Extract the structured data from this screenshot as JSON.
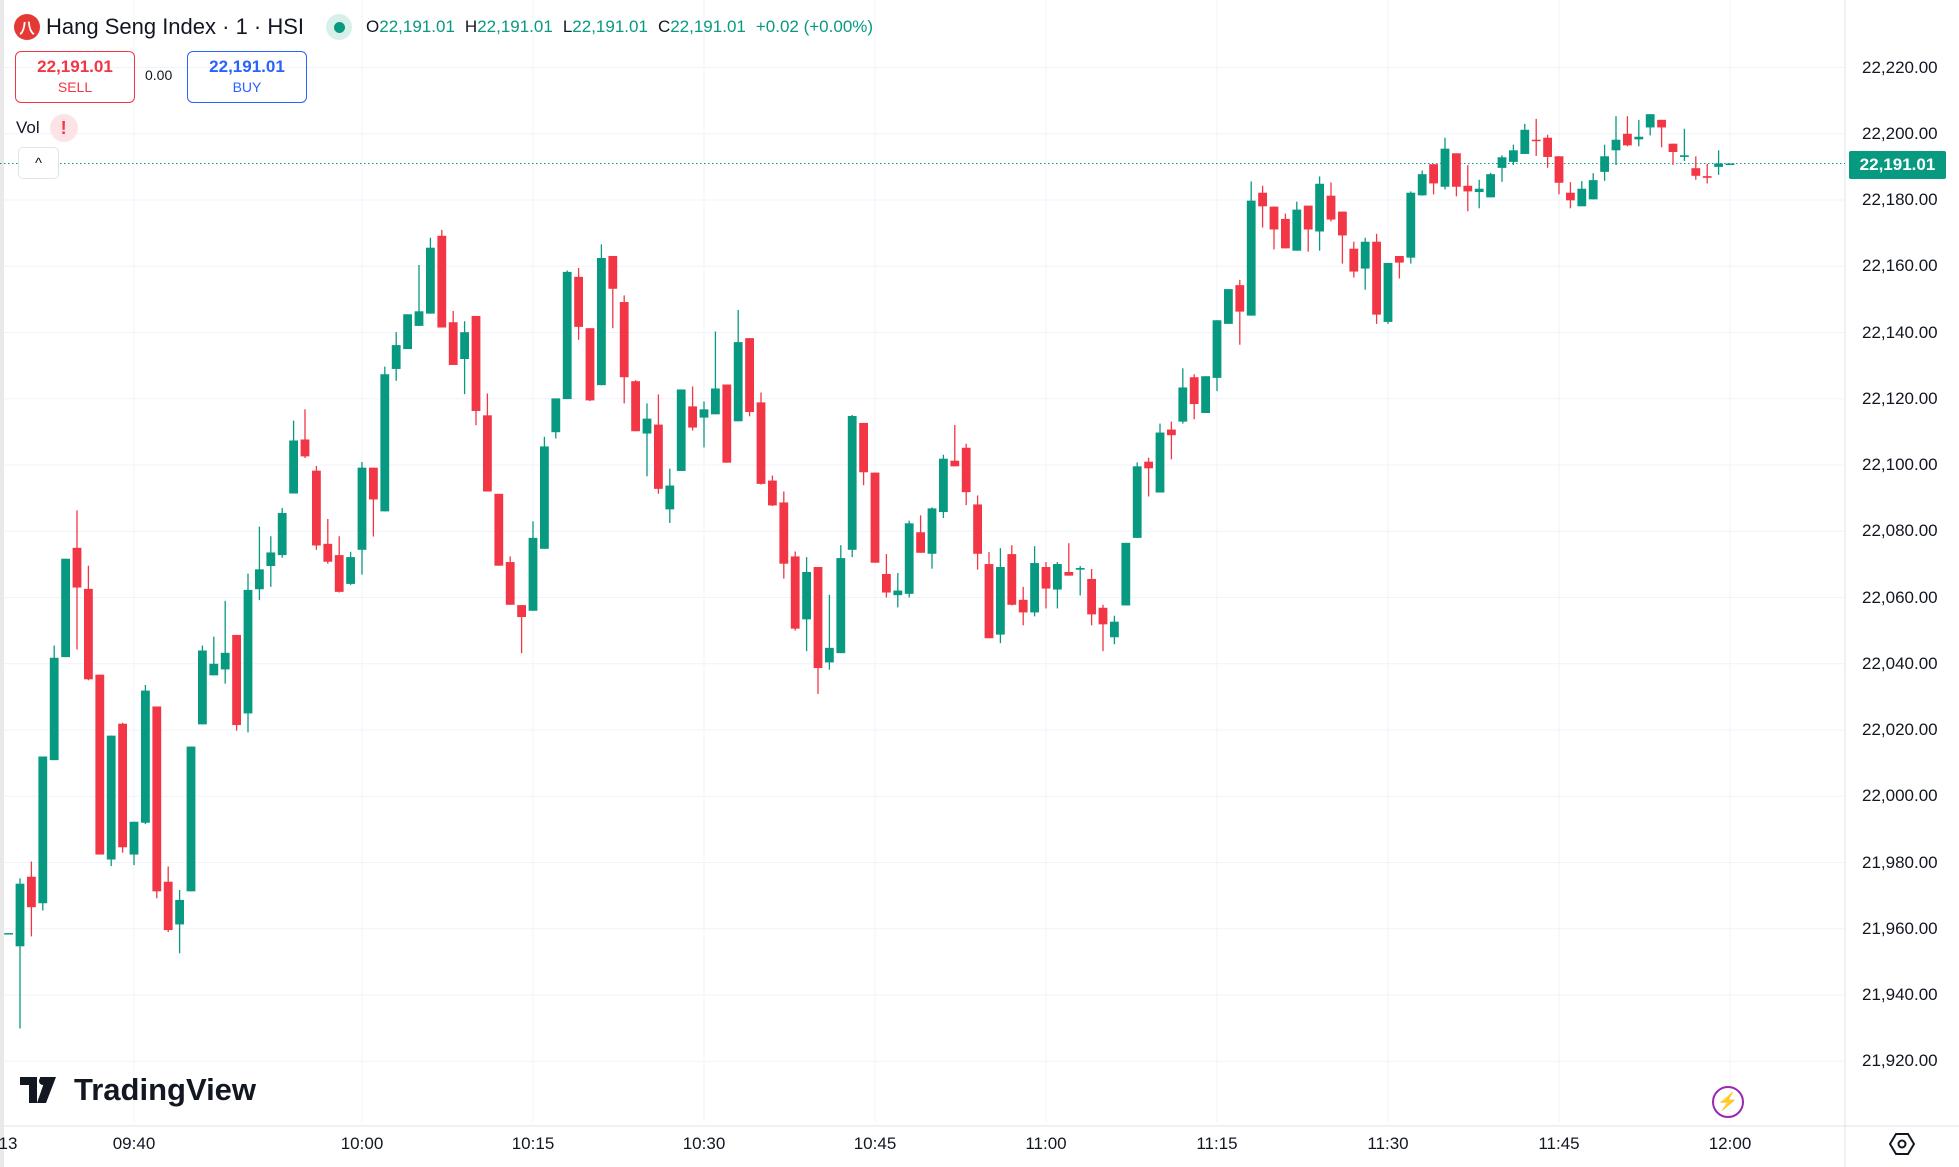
{
  "header": {
    "symbol_title": "Hang Seng Index · 1 · HSI",
    "logo_text": "八",
    "ohlc": [
      {
        "key": "O",
        "value": "22,191.01"
      },
      {
        "key": "H",
        "value": "22,191.01"
      },
      {
        "key": "L",
        "value": "22,191.01"
      },
      {
        "key": "C",
        "value": "22,191.01"
      }
    ],
    "change": "+0.02 (+0.00%)"
  },
  "trade": {
    "sell_price": "22,191.01",
    "sell_label": "SELL",
    "spread": "0.00",
    "buy_price": "22,191.01",
    "buy_label": "BUY"
  },
  "indicators": {
    "vol_label": "Vol",
    "warning": "!",
    "collapse": "^"
  },
  "price_axis": {
    "labels": [
      "22,220.00",
      "22,200.00",
      "22,180.00",
      "22,160.00",
      "22,140.00",
      "22,120.00",
      "22,100.00",
      "22,080.00",
      "22,060.00",
      "22,040.00",
      "22,020.00",
      "22,000.00",
      "21,980.00",
      "21,960.00",
      "21,940.00",
      "21,920.00"
    ],
    "current_price": "22,191.01"
  },
  "time_axis": {
    "labels": [
      "13",
      "09:40",
      "10:00",
      "10:15",
      "10:30",
      "10:45",
      "11:00",
      "11:15",
      "11:30",
      "11:45",
      "12:00"
    ]
  },
  "branding": {
    "name": "TradingView"
  },
  "colors": {
    "up": "#089981",
    "down": "#F23645",
    "grid": "#f0f3fa",
    "bolt": "#9c27b0"
  },
  "chart_data": {
    "type": "candlestick",
    "title": "Hang Seng Index · 1 · HSI",
    "interval": "1 minute",
    "ylim": [
      21910,
      22230
    ],
    "last_price": 22191.01,
    "fields": [
      "time",
      "open",
      "high",
      "low",
      "close"
    ],
    "candles": [
      [
        "09:29",
        21958.7,
        21958.7,
        21958.7,
        21958.7
      ],
      [
        "09:30",
        21954.7,
        21975.2,
        21929.9,
        21973.6
      ],
      [
        "09:31",
        21975.7,
        21980.3,
        21957.7,
        21966.5
      ],
      [
        "09:32",
        21967.7,
        22012.0,
        21965.5,
        22012.0
      ],
      [
        "09:33",
        22010.9,
        22045.5,
        22010.9,
        22041.8
      ],
      [
        "09:34",
        22042.0,
        22071.7,
        22042.0,
        22071.7
      ],
      [
        "09:35",
        22075.0,
        22086.3,
        22044.3,
        22063.0
      ],
      [
        "09:36",
        22062.6,
        22069.6,
        22035.0,
        22035.3
      ],
      [
        "09:37",
        22036.7,
        22036.7,
        21982.4,
        21982.4
      ],
      [
        "09:38",
        21980.9,
        22018.3,
        21978.9,
        22018.3
      ],
      [
        "09:39",
        22021.9,
        22022.2,
        21983.0,
        21984.6
      ],
      [
        "09:40",
        21982.4,
        21992.3,
        21979.2,
        21992.3
      ],
      [
        "09:41",
        21992.0,
        22033.6,
        21991.6,
        22031.9
      ],
      [
        "09:42",
        22027.1,
        22027.1,
        21969.2,
        21971.3
      ],
      [
        "09:43",
        21974.2,
        21978.8,
        21959.0,
        21959.6
      ],
      [
        "09:44",
        21961.3,
        21971.7,
        21952.6,
        21968.7
      ],
      [
        "09:45",
        21971.3,
        22015.0,
        21971.3,
        22015.0
      ],
      [
        "09:46",
        22021.7,
        22045.5,
        22021.7,
        22044.0
      ],
      [
        "09:47",
        22036.5,
        22048.2,
        22036.5,
        22040.0
      ],
      [
        "09:48",
        22038.3,
        22059.0,
        22034.0,
        22043.3
      ],
      [
        "09:49",
        22048.7,
        22048.7,
        22019.8,
        22021.5
      ],
      [
        "09:50",
        22025.0,
        22067.2,
        22019.3,
        22062.3
      ],
      [
        "09:51",
        22062.5,
        22081.4,
        22059.2,
        22068.5
      ],
      [
        "09:52",
        22069.5,
        22078.5,
        22063.2,
        22073.6
      ],
      [
        "09:53",
        22072.8,
        22087.0,
        22072.0,
        22085.5
      ],
      [
        "09:54",
        22091.4,
        22113.4,
        22091.4,
        22107.4
      ],
      [
        "09:55",
        22107.7,
        22116.8,
        22102.1,
        22102.6
      ],
      [
        "09:56",
        22098.3,
        22099.7,
        22074.4,
        22075.7
      ],
      [
        "09:57",
        22076.2,
        22083.7,
        22070.2,
        22070.8
      ],
      [
        "09:58",
        22072.8,
        22078.5,
        22061.5,
        22061.7
      ],
      [
        "09:59",
        22064.1,
        22073.8,
        22063.8,
        22072.2
      ],
      [
        "10:00",
        22074.4,
        22100.9,
        22066.9,
        22099.2
      ],
      [
        "10:01",
        22099.2,
        22099.2,
        22078.4,
        22089.6
      ],
      [
        "10:02",
        22086.0,
        22129.7,
        22086.0,
        22127.4
      ],
      [
        "10:03",
        22129.0,
        22140.1,
        22125.4,
        22136.2
      ],
      [
        "10:04",
        22135.0,
        22145.5,
        22135.0,
        22145.5
      ],
      [
        "10:05",
        22142.0,
        22160.4,
        22142.0,
        22146.4
      ],
      [
        "10:06",
        22145.7,
        22168.6,
        22145.7,
        22165.6
      ],
      [
        "10:07",
        22169.2,
        22171.0,
        22141.5,
        22141.5
      ],
      [
        "10:08",
        22143.1,
        22146.5,
        22130.2,
        22130.2
      ],
      [
        "10:09",
        22132.0,
        22143.4,
        22121.4,
        22140.1
      ],
      [
        "10:10",
        22145.0,
        22145.0,
        22112.0,
        22116.3
      ],
      [
        "10:11",
        22115.0,
        22121.6,
        22092.0,
        22092.0
      ],
      [
        "10:12",
        22091.3,
        22091.3,
        22069.6,
        22069.6
      ],
      [
        "10:13",
        22070.7,
        22072.4,
        22057.8,
        22057.8
      ],
      [
        "10:14",
        22057.7,
        22057.7,
        22043.2,
        22054.1
      ],
      [
        "10:15",
        22056.0,
        22083.0,
        22056.0,
        22078.0
      ],
      [
        "10:16",
        22074.7,
        22108.5,
        22074.7,
        22105.6
      ],
      [
        "10:17",
        22109.9,
        22120.1,
        22108.0,
        22120.1
      ],
      [
        "10:18",
        22119.9,
        22158.7,
        22119.9,
        22158.3
      ],
      [
        "10:19",
        22156.8,
        22159.5,
        22137.8,
        22141.7
      ],
      [
        "10:20",
        22141.3,
        22141.3,
        22119.3,
        22119.5
      ],
      [
        "10:21",
        22124.1,
        22166.6,
        22124.1,
        22162.5
      ],
      [
        "10:22",
        22163.1,
        22163.1,
        22141.3,
        22153.2
      ],
      [
        "10:23",
        22149.2,
        22151.2,
        22118.6,
        22126.5
      ],
      [
        "10:24",
        22125.3,
        22125.6,
        22110.2,
        22110.2
      ],
      [
        "10:25",
        22109.5,
        22118.6,
        22096.6,
        22114.0
      ],
      [
        "10:26",
        22112.2,
        22121.3,
        22091.3,
        22092.8
      ],
      [
        "10:27",
        22086.6,
        22098.9,
        22082.5,
        22093.8
      ],
      [
        "10:28",
        22098.2,
        22122.8,
        22098.2,
        22122.8
      ],
      [
        "10:29",
        22117.7,
        22123.7,
        22110.4,
        22111.3
      ],
      [
        "10:30",
        22114.3,
        22119.2,
        22105.3,
        22116.8
      ],
      [
        "10:31",
        22115.3,
        22140.3,
        22115.3,
        22123.1
      ],
      [
        "10:32",
        22124.3,
        22124.3,
        22100.7,
        22100.7
      ],
      [
        "10:33",
        22113.2,
        22146.8,
        22113.2,
        22137.1
      ],
      [
        "10:34",
        22138.3,
        22138.3,
        22114.7,
        22116.0
      ],
      [
        "10:35",
        22118.9,
        22121.9,
        22094.1,
        22094.3
      ],
      [
        "10:36",
        22095.3,
        22096.8,
        22087.6,
        22087.8
      ],
      [
        "10:37",
        22088.7,
        22092.0,
        22065.7,
        22070.2
      ],
      [
        "10:38",
        22072.4,
        22073.9,
        22050.0,
        22050.6
      ],
      [
        "10:39",
        22053.4,
        22072.2,
        22043.8,
        22067.7
      ],
      [
        "10:40",
        22069.2,
        22069.2,
        22030.9,
        22038.7
      ],
      [
        "10:41",
        22040.4,
        22060.8,
        22038.2,
        22044.8
      ],
      [
        "10:42",
        22043.2,
        22075.8,
        22043.2,
        22071.9
      ],
      [
        "10:43",
        22074.4,
        22115.1,
        22072.2,
        22114.8
      ],
      [
        "10:44",
        22112.7,
        22112.7,
        22093.9,
        22097.8
      ],
      [
        "10:45",
        22097.7,
        22097.7,
        22070.5,
        22070.5
      ],
      [
        "10:46",
        22067.1,
        22073.1,
        22060.0,
        22061.5
      ],
      [
        "10:47",
        22060.7,
        22067.4,
        22057.0,
        22062.1
      ],
      [
        "10:48",
        22061.1,
        22083.2,
        22060.0,
        22082.4
      ],
      [
        "10:49",
        22079.7,
        22084.8,
        22073.5,
        22073.5
      ],
      [
        "10:50",
        22073.2,
        22087.2,
        22068.7,
        22086.9
      ],
      [
        "10:51",
        22085.8,
        22103.1,
        22084.0,
        22101.9
      ],
      [
        "10:52",
        22101.3,
        22112.1,
        22099.6,
        22099.6
      ],
      [
        "10:53",
        22105.2,
        22106.4,
        22087.9,
        22091.8
      ],
      [
        "10:54",
        22088.1,
        22090.8,
        22068.4,
        22073.2
      ],
      [
        "10:55",
        22070.1,
        22073.7,
        22047.7,
        22047.7
      ],
      [
        "10:56",
        22048.8,
        22074.9,
        22046.2,
        22069.2
      ],
      [
        "10:57",
        22073.1,
        22075.8,
        22057.6,
        22057.8
      ],
      [
        "10:58",
        22059.3,
        22063.2,
        22051.6,
        22055.5
      ],
      [
        "10:59",
        22055.5,
        22075.5,
        22054.3,
        22070.4
      ],
      [
        "11:00",
        22069.2,
        22070.7,
        22056.7,
        22062.7
      ],
      [
        "11:01",
        22062.4,
        22070.7,
        22056.7,
        22070.1
      ],
      [
        "11:02",
        22067.7,
        22076.4,
        22066.6,
        22066.6
      ],
      [
        "11:03",
        22068.4,
        22069.5,
        22060.6,
        22068.9
      ],
      [
        "11:04",
        22065.6,
        22068.6,
        22051.6,
        22054.9
      ],
      [
        "11:05",
        22056.9,
        22057.8,
        22043.8,
        22051.9
      ],
      [
        "11:06",
        22048.0,
        22054.5,
        22045.9,
        22052.7
      ],
      [
        "11:07",
        22057.6,
        22076.5,
        22057.6,
        22076.5
      ],
      [
        "11:08",
        22078.0,
        22100.8,
        22078.0,
        22099.6
      ],
      [
        "11:09",
        22101.0,
        22102.2,
        22090.5,
        22099.0
      ],
      [
        "11:10",
        22091.7,
        22112.5,
        22091.7,
        22109.8
      ],
      [
        "11:11",
        22110.7,
        22113.1,
        22101.7,
        22109.0
      ],
      [
        "11:12",
        22113.1,
        22129.2,
        22112.5,
        22123.4
      ],
      [
        "11:13",
        22126.5,
        22127.4,
        22113.8,
        22118.4
      ],
      [
        "11:14",
        22115.7,
        22126.8,
        22115.7,
        22126.8
      ],
      [
        "11:15",
        22126.3,
        22143.7,
        22122.3,
        22143.7
      ],
      [
        "11:16",
        22142.6,
        22153.1,
        22142.6,
        22153.1
      ],
      [
        "11:17",
        22154.3,
        22155.9,
        22136.3,
        22146.3
      ],
      [
        "11:18",
        22145.1,
        22185.6,
        22145.1,
        22179.8
      ],
      [
        "11:19",
        22182.2,
        22184.3,
        22171.7,
        22178.1
      ],
      [
        "11:20",
        22178.0,
        22178.0,
        22165.1,
        22171.1
      ],
      [
        "11:21",
        22174.3,
        22175.9,
        22165.4,
        22165.4
      ],
      [
        "11:22",
        22164.7,
        22179.5,
        22164.7,
        22177.1
      ],
      [
        "11:23",
        22178.3,
        22178.3,
        22164.4,
        22171.1
      ],
      [
        "11:24",
        22170.5,
        22187.1,
        22164.7,
        22184.9
      ],
      [
        "11:25",
        22181.3,
        22185.3,
        22173.5,
        22174.1
      ],
      [
        "11:26",
        22176.5,
        22176.5,
        22160.8,
        22169.3
      ],
      [
        "11:27",
        22165.3,
        22167.4,
        22156.6,
        22158.4
      ],
      [
        "11:28",
        22159.3,
        22168.6,
        22152.9,
        22167.4
      ],
      [
        "11:29",
        22167.4,
        22169.8,
        22142.6,
        22145.4
      ],
      [
        "11:30",
        22143.2,
        22161.0,
        22142.6,
        22161.0
      ],
      [
        "11:31",
        22163.1,
        22163.1,
        22156.3,
        22161.1
      ],
      [
        "11:32",
        22162.6,
        22182.6,
        22160.8,
        22182.2
      ],
      [
        "11:33",
        22181.4,
        22188.9,
        22181.3,
        22187.8
      ],
      [
        "11:34",
        22190.8,
        22190.8,
        22181.7,
        22185.0
      ],
      [
        "11:35",
        22184.0,
        22198.8,
        22183.2,
        22195.5
      ],
      [
        "11:36",
        22194.1,
        22194.1,
        22181.1,
        22184.0
      ],
      [
        "11:37",
        22184.3,
        22190.5,
        22176.6,
        22182.6
      ],
      [
        "11:38",
        22182.4,
        22186.1,
        22177.5,
        22183.4
      ],
      [
        "11:39",
        22180.8,
        22188.2,
        22180.8,
        22187.8
      ],
      [
        "11:40",
        22189.7,
        22193.5,
        22185.5,
        22192.9
      ],
      [
        "11:41",
        22191.5,
        22196.7,
        22190.6,
        22195.0
      ],
      [
        "11:42",
        22193.9,
        22203.0,
        22193.9,
        22201.2
      ],
      [
        "11:43",
        22198.2,
        22204.5,
        22193.3,
        22198.0
      ],
      [
        "11:44",
        22198.8,
        22199.7,
        22189.7,
        22193.0
      ],
      [
        "11:45",
        22193.2,
        22193.2,
        22181.7,
        22185.2
      ],
      [
        "11:46",
        22182.2,
        22185.4,
        22177.5,
        22179.9
      ],
      [
        "11:47",
        22178.1,
        22185.7,
        22178.1,
        22183.4
      ],
      [
        "11:48",
        22180.2,
        22188.1,
        22180.2,
        22186.0
      ],
      [
        "11:49",
        22188.5,
        22196.7,
        22185.8,
        22193.2
      ],
      [
        "11:50",
        22195.0,
        22205.3,
        22190.6,
        22198.2
      ],
      [
        "11:51",
        22200.0,
        22205.3,
        22196.2,
        22196.5
      ],
      [
        "11:52",
        22198.3,
        22204.2,
        22196.2,
        22199.1
      ],
      [
        "11:53",
        22201.9,
        22205.9,
        22199.5,
        22205.9
      ],
      [
        "11:54",
        22204.2,
        22204.2,
        22195.9,
        22201.9
      ],
      [
        "11:55",
        22197.0,
        22197.0,
        22190.6,
        22194.5
      ],
      [
        "11:56",
        22193.0,
        22201.5,
        22191.8,
        22193.5
      ],
      [
        "11:57",
        22189.6,
        22193.2,
        22186.1,
        22187.3
      ],
      [
        "11:58",
        22187.2,
        22190.9,
        22185.0,
        22186.7
      ],
      [
        "11:59",
        22190.0,
        22195.0,
        22187.6,
        22191.0
      ],
      [
        "12:00",
        22191.01,
        22191.01,
        22191.01,
        22191.01
      ]
    ]
  }
}
